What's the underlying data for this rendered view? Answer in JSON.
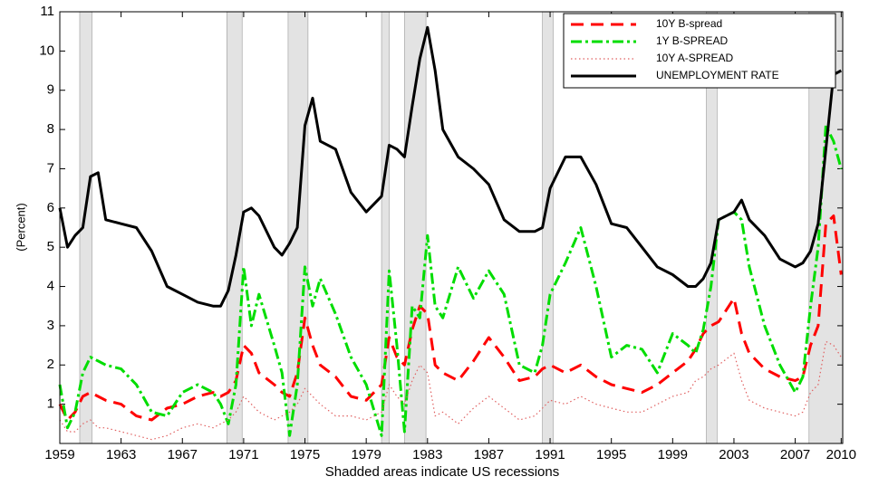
{
  "chart_data": {
    "type": "line",
    "x_label": "Shadded areas indicate US recessions",
    "y_label": "(Percent)",
    "xlim": [
      1959,
      2010.1
    ],
    "ylim": [
      0,
      11
    ],
    "xticks": [
      1959,
      1963,
      1967,
      1971,
      1975,
      1979,
      1983,
      1987,
      1991,
      1995,
      1999,
      2003,
      2007,
      2010
    ],
    "yticks": [
      1,
      2,
      3,
      4,
      5,
      6,
      7,
      8,
      9,
      10,
      11
    ],
    "legend": "upper right",
    "recession_color": "#e3e3e3",
    "recessions": [
      [
        1960.3,
        1961.1
      ],
      [
        1969.9,
        1970.9
      ],
      [
        1973.9,
        1975.2
      ],
      [
        1980.0,
        1980.5
      ],
      [
        1981.5,
        1982.9
      ],
      [
        1990.5,
        1991.2
      ],
      [
        2001.2,
        2001.9
      ],
      [
        2007.9,
        2010.1
      ]
    ],
    "x": [
      1959,
      1959.5,
      1960,
      1960.5,
      1961,
      1961.5,
      1962,
      1963,
      1964,
      1965,
      1966,
      1967,
      1968,
      1969,
      1969.5,
      1970,
      1970.5,
      1971,
      1971.5,
      1972,
      1973,
      1973.5,
      1974,
      1974.5,
      1975,
      1975.5,
      1976,
      1977,
      1978,
      1979,
      1980,
      1980.5,
      1981,
      1981.5,
      1982,
      1982.5,
      1983,
      1983.5,
      1984,
      1985,
      1986,
      1987,
      1988,
      1989,
      1990,
      1990.5,
      1991,
      1992,
      1993,
      1994,
      1995,
      1996,
      1997,
      1998,
      1999,
      2000,
      2000.5,
      2001,
      2001.5,
      2002,
      2003,
      2003.5,
      2004,
      2005,
      2006,
      2007,
      2007.5,
      2008,
      2008.5,
      2009,
      2009.5,
      2010
    ],
    "series": [
      {
        "name": "10Y B-spread",
        "color": "#ff0000",
        "style": "dashed",
        "width": 3,
        "values": [
          1.0,
          0.6,
          0.8,
          1.2,
          1.3,
          1.2,
          1.1,
          1.0,
          0.7,
          0.6,
          0.9,
          1.0,
          1.2,
          1.3,
          1.2,
          1.3,
          1.6,
          2.5,
          2.3,
          1.8,
          1.5,
          1.3,
          1.2,
          1.8,
          3.2,
          2.5,
          2.0,
          1.7,
          1.2,
          1.1,
          1.5,
          2.7,
          2.2,
          2.0,
          2.9,
          3.5,
          3.3,
          2.0,
          1.8,
          1.6,
          2.1,
          2.7,
          2.2,
          1.6,
          1.7,
          1.9,
          2.0,
          1.8,
          2.0,
          1.7,
          1.5,
          1.4,
          1.3,
          1.5,
          1.8,
          2.1,
          2.4,
          2.8,
          3.0,
          3.1,
          3.7,
          2.8,
          2.3,
          1.9,
          1.7,
          1.6,
          1.7,
          2.5,
          3.0,
          5.6,
          5.8,
          4.3
        ]
      },
      {
        "name": "1Y B-SPREAD",
        "color": "#00dd00",
        "style": "dashdot",
        "width": 3,
        "values": [
          1.5,
          0.4,
          0.8,
          1.8,
          2.2,
          2.1,
          2.0,
          1.9,
          1.5,
          0.8,
          0.7,
          1.3,
          1.5,
          1.3,
          1.0,
          0.5,
          1.5,
          4.5,
          3.0,
          3.8,
          2.5,
          1.8,
          0.2,
          1.5,
          4.5,
          3.5,
          4.2,
          3.3,
          2.2,
          1.5,
          0.2,
          4.4,
          2.5,
          0.3,
          3.5,
          3.2,
          5.3,
          3.5,
          3.2,
          4.5,
          3.7,
          4.4,
          3.8,
          2.0,
          1.8,
          2.5,
          3.8,
          4.6,
          5.5,
          4.0,
          2.2,
          2.5,
          2.4,
          1.8,
          2.8,
          2.5,
          2.3,
          2.9,
          4.0,
          5.7,
          5.9,
          5.7,
          4.5,
          3.0,
          2.0,
          1.3,
          1.7,
          3.5,
          5.0,
          8.1,
          7.7,
          7.0
        ]
      },
      {
        "name": "10Y A-SPREAD",
        "color": "#e06060",
        "style": "dotted",
        "width": 1.2,
        "values": [
          0.6,
          0.3,
          0.3,
          0.5,
          0.6,
          0.4,
          0.4,
          0.3,
          0.2,
          0.1,
          0.2,
          0.4,
          0.5,
          0.4,
          0.5,
          0.6,
          0.8,
          1.2,
          1.0,
          0.8,
          0.6,
          0.7,
          0.8,
          1.0,
          1.4,
          1.2,
          1.0,
          0.7,
          0.7,
          0.6,
          0.8,
          1.5,
          1.2,
          1.0,
          1.6,
          2.0,
          1.8,
          0.7,
          0.8,
          0.5,
          0.9,
          1.2,
          0.9,
          0.6,
          0.7,
          0.9,
          1.1,
          1.0,
          1.2,
          1.0,
          0.9,
          0.8,
          0.8,
          1.0,
          1.2,
          1.3,
          1.6,
          1.7,
          1.9,
          2.0,
          2.3,
          1.6,
          1.1,
          0.9,
          0.8,
          0.7,
          0.8,
          1.3,
          1.5,
          2.6,
          2.5,
          2.2
        ]
      },
      {
        "name": "UNEMPLOYMENT RATE",
        "color": "#000000",
        "style": "solid",
        "width": 3,
        "values": [
          6.0,
          5.0,
          5.3,
          5.5,
          6.8,
          6.9,
          5.7,
          5.6,
          5.5,
          4.9,
          4.0,
          3.8,
          3.6,
          3.5,
          3.5,
          3.9,
          4.8,
          5.9,
          6.0,
          5.8,
          5.0,
          4.8,
          5.1,
          5.5,
          8.1,
          8.8,
          7.7,
          7.5,
          6.4,
          5.9,
          6.3,
          7.6,
          7.5,
          7.3,
          8.6,
          9.8,
          10.6,
          9.5,
          8.0,
          7.3,
          7.0,
          6.6,
          5.7,
          5.4,
          5.4,
          5.5,
          6.5,
          7.3,
          7.3,
          6.6,
          5.6,
          5.5,
          5.0,
          4.5,
          4.3,
          4.0,
          4.0,
          4.2,
          4.6,
          5.7,
          5.9,
          6.2,
          5.7,
          5.3,
          4.7,
          4.5,
          4.6,
          4.9,
          5.6,
          7.5,
          9.4,
          9.5
        ]
      }
    ]
  }
}
